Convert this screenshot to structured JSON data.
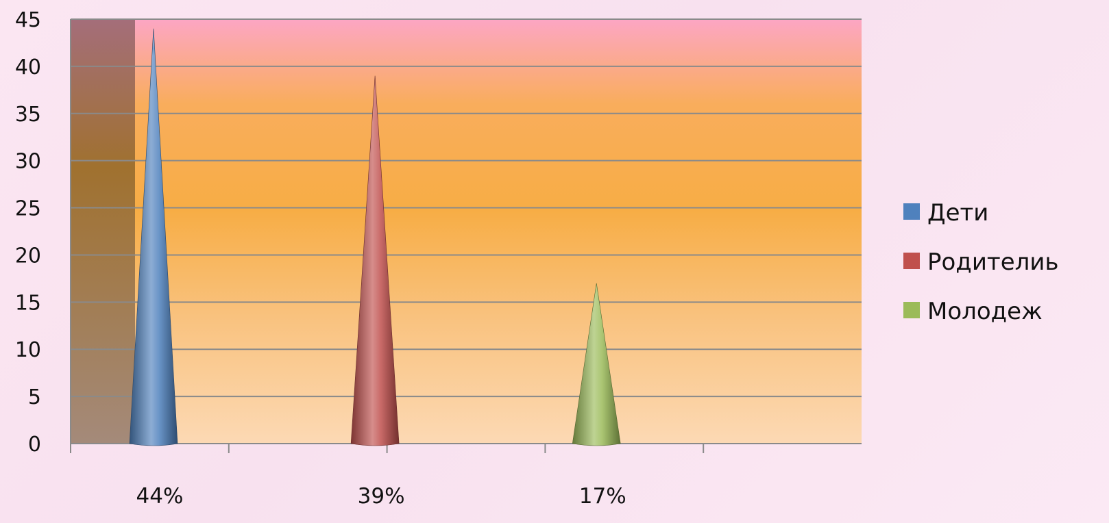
{
  "chart_data": {
    "type": "bar",
    "bar_shape": "cone",
    "categories": [
      "44%",
      "39%",
      "17%"
    ],
    "series": [
      {
        "name": "Дети",
        "values": [
          44,
          null,
          null
        ],
        "color": "#4f81bd"
      },
      {
        "name": "Родителиь",
        "values": [
          null,
          39,
          null
        ],
        "color": "#c0504d"
      },
      {
        "name": "Молодеж",
        "values": [
          null,
          null,
          17
        ],
        "color": "#9bbb59"
      }
    ],
    "y_ticks": [
      0,
      5,
      10,
      15,
      20,
      25,
      30,
      35,
      40,
      45
    ],
    "ylim": [
      0,
      45
    ],
    "x_divisions": 5,
    "grid": true,
    "legend_position": "right"
  }
}
